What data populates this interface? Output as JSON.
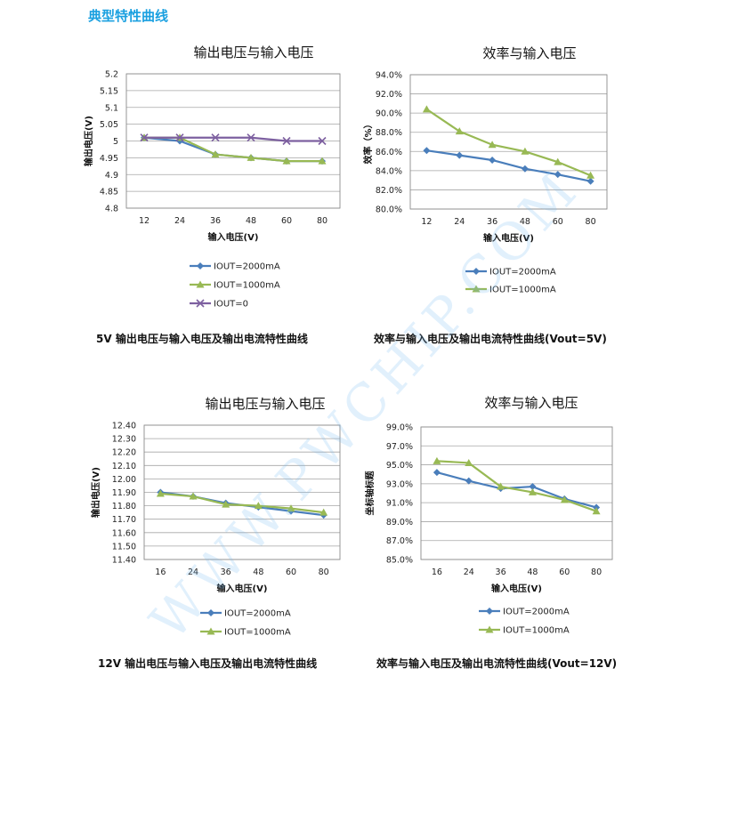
{
  "section_title": "典型特性曲线",
  "watermark": "WWW.PWCHIP.COM",
  "chart_data": [
    {
      "type": "line",
      "title": "输出电压与输入电压",
      "xlabel": "输入电压(V)",
      "ylabel": "输出电压(V)",
      "categories": [
        "12",
        "24",
        "36",
        "48",
        "60",
        "80"
      ],
      "ylim": [
        4.8,
        5.2
      ],
      "ytick_step": 0.05,
      "yticks": [
        "5.2",
        "5.15",
        "5.1",
        "5.05",
        "5",
        "4.95",
        "4.9",
        "4.85",
        "4.8"
      ],
      "grid": true,
      "series": [
        {
          "name": "IOUT=2000mA",
          "values": [
            5.01,
            5.0,
            4.96,
            4.95,
            4.94,
            4.94
          ],
          "color": "#4a7ebb",
          "marker": "diamond"
        },
        {
          "name": "IOUT=1000mA",
          "values": [
            5.01,
            5.01,
            4.96,
            4.95,
            4.94,
            4.94
          ],
          "color": "#98b954",
          "marker": "triangle"
        },
        {
          "name": "IOUT=0",
          "values": [
            5.01,
            5.01,
            5.01,
            5.01,
            5.0,
            5.0
          ],
          "color": "#7d60a0",
          "marker": "x"
        }
      ],
      "caption": "5V 输出电压与输入电压及输出电流特性曲线"
    },
    {
      "type": "line",
      "title": "效率与输入电压",
      "xlabel": "输入电压(V)",
      "ylabel": "效率（%）",
      "categories": [
        "12",
        "24",
        "36",
        "48",
        "60",
        "80"
      ],
      "ylim": [
        80.0,
        94.0
      ],
      "ytick_step": 2.0,
      "yticks": [
        "94.0%",
        "92.0%",
        "90.0%",
        "88.0%",
        "86.0%",
        "84.0%",
        "82.0%",
        "80.0%"
      ],
      "grid": true,
      "series": [
        {
          "name": "IOUT=2000mA",
          "values": [
            86.1,
            85.6,
            85.1,
            84.2,
            83.6,
            82.9
          ],
          "color": "#4a7ebb",
          "marker": "diamond"
        },
        {
          "name": "IOUT=1000mA",
          "values": [
            90.4,
            88.1,
            86.7,
            86.0,
            84.9,
            83.5
          ],
          "color": "#98b954",
          "marker": "triangle"
        }
      ],
      "caption": "效率与输入电压及输出电流特性曲线(Vout=5V)"
    },
    {
      "type": "line",
      "title": "输出电压与输入电压",
      "xlabel": "输入电压(V)",
      "ylabel": "输出电压(V)",
      "categories": [
        "16",
        "24",
        "36",
        "48",
        "60",
        "80"
      ],
      "ylim": [
        11.4,
        12.4
      ],
      "ytick_step": 0.1,
      "yticks": [
        "12.40",
        "12.30",
        "12.20",
        "12.10",
        "12.00",
        "11.90",
        "11.80",
        "11.70",
        "11.60",
        "11.50",
        "11.40"
      ],
      "grid": true,
      "series": [
        {
          "name": "IOUT=2000mA",
          "values": [
            11.9,
            11.87,
            11.82,
            11.79,
            11.76,
            11.73
          ],
          "color": "#4a7ebb",
          "marker": "diamond"
        },
        {
          "name": "IOUT=1000mA",
          "values": [
            11.89,
            11.87,
            11.81,
            11.8,
            11.78,
            11.75
          ],
          "color": "#98b954",
          "marker": "triangle"
        }
      ],
      "caption": "12V 输出电压与输入电压及输出电流特性曲线"
    },
    {
      "type": "line",
      "title": "效率与输入电压",
      "xlabel": "输入电压(V)",
      "ylabel": "坐标轴标题",
      "categories": [
        "16",
        "24",
        "36",
        "48",
        "60",
        "80"
      ],
      "ylim": [
        85.0,
        99.0
      ],
      "ytick_step": 2.0,
      "yticks": [
        "99.0%",
        "97.0%",
        "95.0%",
        "93.0%",
        "91.0%",
        "89.0%",
        "87.0%",
        "85.0%"
      ],
      "grid": true,
      "series": [
        {
          "name": "IOUT=2000mA",
          "values": [
            94.2,
            93.3,
            92.5,
            92.7,
            91.4,
            90.5
          ],
          "color": "#4a7ebb",
          "marker": "diamond"
        },
        {
          "name": "IOUT=1000mA",
          "values": [
            95.4,
            95.2,
            92.7,
            92.1,
            91.3,
            90.1
          ],
          "color": "#98b954",
          "marker": "triangle"
        }
      ],
      "caption": "效率与输入电压及输出电流特性曲线(Vout=12V)"
    }
  ]
}
